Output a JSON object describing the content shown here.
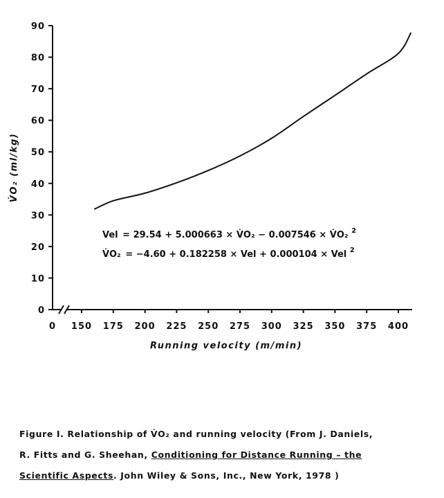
{
  "chart_data": {
    "type": "line",
    "xlabel": "Running velocity (m/min)",
    "ylabel": "V̇O₂ (ml/kg)",
    "xlim": [
      150,
      410
    ],
    "ylim": [
      0,
      90
    ],
    "x_ticks": [
      "0",
      "150",
      "175",
      "200",
      "225",
      "250",
      "275",
      "300",
      "325",
      "350",
      "375",
      "400"
    ],
    "y_ticks": [
      "0",
      "10",
      "20",
      "30",
      "40",
      "50",
      "60",
      "70",
      "80",
      "90"
    ],
    "axis_break": "x",
    "grid": false,
    "series": [
      {
        "x": [
          160,
          175,
          200,
          225,
          250,
          275,
          300,
          325,
          350,
          375,
          400,
          410
        ],
        "y": [
          31.8,
          34.5,
          36.9,
          40.2,
          44.1,
          48.7,
          54.3,
          61.2,
          67.9,
          74.7,
          81.2,
          87.8
        ]
      }
    ],
    "equations": {
      "vel": {
        "lhs": "Vel",
        "rhs": "= 29.54 + 5.000663 × V̇O₂ − 0.007546 × V̇O₂",
        "sup": "2"
      },
      "vo2": {
        "lhs": "V̇O₂",
        "rhs": "= −4.60 + 0.182258 × Vel + 0.000104 × Vel",
        "sup": "2"
      }
    }
  },
  "caption": {
    "part1": "Figure I.  Relationship of V̇O₂ and running velocity (From J. Daniels,",
    "part2": "R. Fitts and G. Sheehan, ",
    "title_line1": "Conditioning for Distance Running – the",
    "title_line2": "Scientific Aspects",
    "part3": ".  John Wiley & Sons, Inc., New York, 1978 )"
  }
}
